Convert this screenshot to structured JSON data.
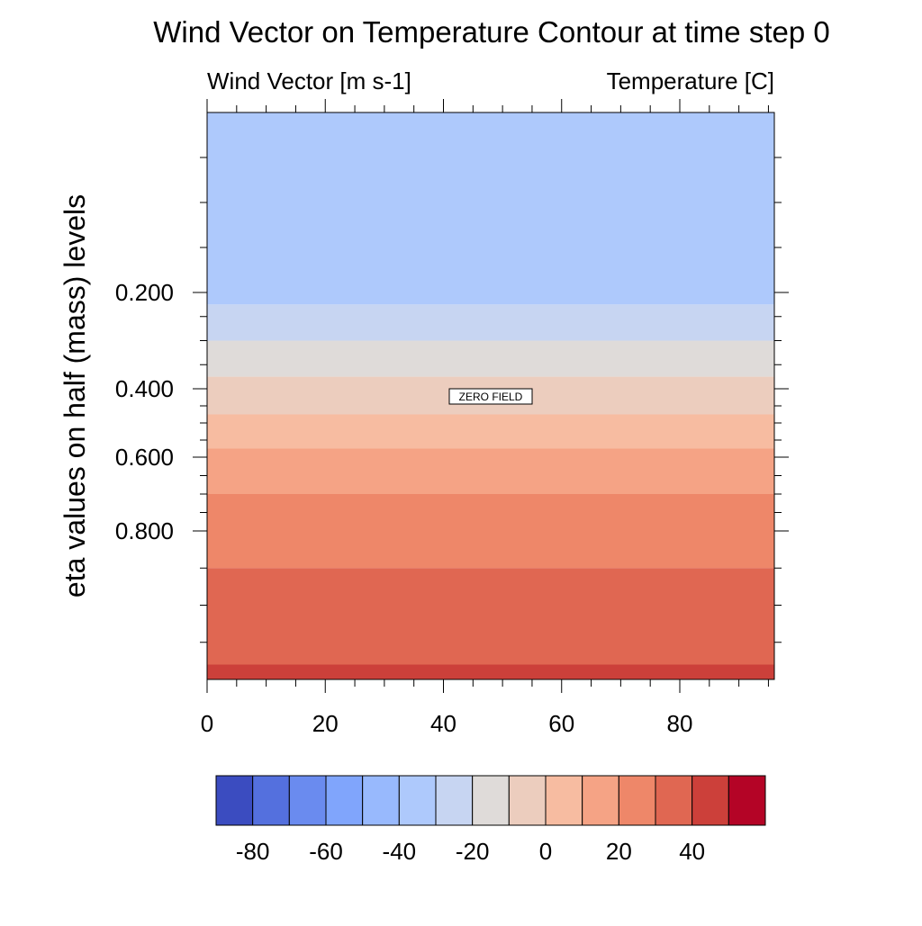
{
  "chart_data": {
    "type": "heatmap",
    "title": "Wind Vector on Temperature Contour at time step 0",
    "left_subtitle": "Wind Vector [m s-1]",
    "right_subtitle": "Temperature [C]",
    "ylabel": "eta values on half (mass) levels",
    "xlabel": "",
    "xlim": [
      0,
      96
    ],
    "x_ticks": [
      0,
      20,
      40,
      60,
      80
    ],
    "x_tick_labels": [
      "0",
      "20",
      "40",
      "60",
      "80"
    ],
    "y_ticks": [
      0.2,
      0.4,
      0.6,
      0.8
    ],
    "y_tick_labels": [
      "0.200",
      "0.400",
      "0.600",
      "0.800"
    ],
    "annotation": "ZERO FIELD",
    "grid": false,
    "colorbar": {
      "placement": "bottom",
      "levels": [
        -80,
        -70,
        -60,
        -50,
        -40,
        -30,
        -20,
        -10,
        0,
        10,
        20,
        30,
        40,
        50
      ],
      "tick_values": [
        -80,
        -60,
        -40,
        -20,
        0,
        20,
        40
      ],
      "tick_labels": [
        "-80",
        "-60",
        "-40",
        "-20",
        "0",
        "20",
        "40"
      ],
      "colors": [
        "#3b4cc0",
        "#5470de",
        "#6a8bef",
        "#80a5fc",
        "#98b9fd",
        "#aec9fc",
        "#c7d5f2",
        "#dfdbd9",
        "#eccdbe",
        "#f7bca1",
        "#f5a385",
        "#ee8769",
        "#e06752",
        "#cc403a",
        "#b40426"
      ]
    },
    "bands": [
      {
        "eta_top": 0.0,
        "eta_bottom": 0.225,
        "temp_range": [
          -40,
          -30
        ],
        "color": "#aec9fc"
      },
      {
        "eta_top": 0.225,
        "eta_bottom": 0.3,
        "temp_range": [
          -30,
          -20
        ],
        "color": "#c7d5f2"
      },
      {
        "eta_top": 0.3,
        "eta_bottom": 0.375,
        "temp_range": [
          -20,
          -10
        ],
        "color": "#dfdbd9"
      },
      {
        "eta_top": 0.375,
        "eta_bottom": 0.475,
        "temp_range": [
          -10,
          0
        ],
        "color": "#eccdbe"
      },
      {
        "eta_top": 0.475,
        "eta_bottom": 0.575,
        "temp_range": [
          0,
          10
        ],
        "color": "#f7bca1"
      },
      {
        "eta_top": 0.575,
        "eta_bottom": 0.7,
        "temp_range": [
          10,
          20
        ],
        "color": "#f5a385"
      },
      {
        "eta_top": 0.7,
        "eta_bottom": 0.85,
        "temp_range": [
          20,
          30
        ],
        "color": "#ee8769"
      },
      {
        "eta_top": 0.85,
        "eta_bottom": 0.98,
        "temp_range": [
          30,
          40
        ],
        "color": "#e06752"
      },
      {
        "eta_top": 0.98,
        "eta_bottom": 1.0,
        "temp_range": [
          40,
          50
        ],
        "color": "#cc403a"
      }
    ]
  }
}
